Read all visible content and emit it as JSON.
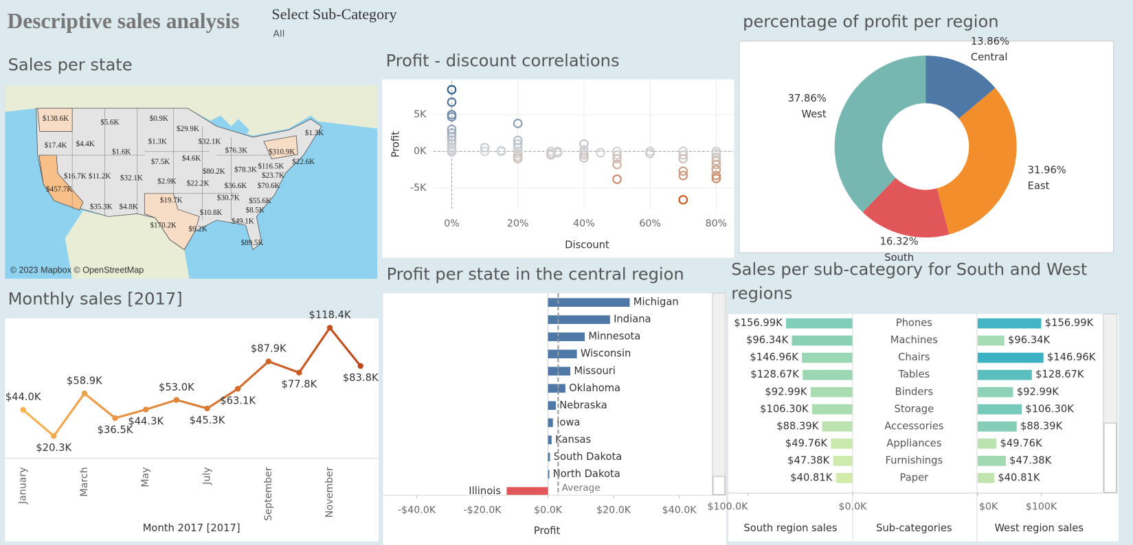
{
  "header": {
    "title": "Descriptive sales analysis",
    "filter_label": "Select Sub-Category",
    "filter_value": "All"
  },
  "map": {
    "title": "Sales per state",
    "labels": [
      "$138.6K",
      "$5.6K",
      "$0.9K",
      "$29.9K",
      "$1.3K",
      "$17.4K",
      "$4.4K",
      "$1.3K",
      "$32.1K",
      "$76.3K",
      "$310.9K",
      "$1.6K",
      "$7.5K",
      "$4.6K",
      "$22.6K",
      "$116.5K",
      "$80.2K",
      "$78.3K",
      "$23.7K",
      "$16.7K",
      "$11.2K",
      "$32.1K",
      "$2.9K",
      "$22.2K",
      "$36.6K",
      "$70.6K",
      "$457.7K",
      "$19.7K",
      "$30.7K",
      "$55.6K",
      "$35.3K",
      "$4.8K",
      "$10.8K",
      "$8.5K",
      "$49.1K",
      "$170.2K",
      "$9.2K",
      "$89.5K"
    ],
    "attribution": "© 2023 Mapbox © OpenStreetMap"
  },
  "chart_data": [
    {
      "type": "scatter",
      "title": "Profit - discount correlations",
      "x_label": "Discount",
      "y_label": "Profit",
      "xlim": [
        -5.5,
        85.2
      ],
      "ylim": [
        -7900,
        9600
      ],
      "xticks": [
        {
          "value": 0,
          "label": "0%"
        },
        {
          "value": 20,
          "label": "20%"
        },
        {
          "value": 40,
          "label": "40%"
        },
        {
          "value": 60,
          "label": "60%"
        },
        {
          "value": 80,
          "label": "80%"
        }
      ],
      "yticks": [
        {
          "value": 5000,
          "label": "5K"
        },
        {
          "value": 0,
          "label": "0K"
        },
        {
          "value": -5000,
          "label": "-5K"
        }
      ],
      "grid": true,
      "x": [
        0,
        0,
        0,
        0,
        0,
        0,
        0,
        0,
        0,
        0,
        0,
        0,
        0,
        10,
        10,
        15,
        15,
        20,
        20,
        20,
        20,
        20,
        20,
        20,
        20,
        30,
        30,
        30,
        32,
        32,
        40,
        40,
        40,
        40,
        40,
        45,
        50,
        50,
        50,
        50,
        50,
        60,
        60,
        70,
        70,
        70,
        70,
        70,
        70,
        80,
        80,
        80,
        80,
        80,
        80,
        80,
        80
      ],
      "y": [
        8400,
        6700,
        5000,
        4700,
        3000,
        2500,
        2000,
        1500,
        1000,
        500,
        200,
        0,
        -100,
        500,
        0,
        100,
        0,
        3800,
        1500,
        1000,
        500,
        0,
        -300,
        -700,
        -1000,
        0,
        -300,
        -500,
        0,
        -200,
        1000,
        200,
        -200,
        -500,
        -900,
        -200,
        0,
        -500,
        -1000,
        -1800,
        -3800,
        0,
        -300,
        0,
        -500,
        -1000,
        -2700,
        -3300,
        -6600,
        0,
        -300,
        -800,
        -1300,
        -1800,
        -2500,
        -3300,
        -3700
      ],
      "color_scale": {
        "negative": "#cc5414",
        "zero": "#cfd2d6",
        "positive": "#2a5b8a"
      }
    },
    {
      "type": "pie",
      "title": "percentage of profit per region",
      "donut": true,
      "categories": [
        "Central",
        "East",
        "South",
        "West"
      ],
      "values": [
        13.86,
        31.96,
        16.32,
        37.86
      ],
      "value_labels": [
        "13.86%",
        "31.96%",
        "16.32%",
        "37.86%"
      ],
      "colors": [
        "#4e79a7",
        "#f28e2b",
        "#e15759",
        "#76b7b2"
      ]
    },
    {
      "type": "line",
      "title": "Monthly sales [2017]",
      "x_label": "Month 2017 [2017]",
      "categories": [
        "January",
        null,
        "March",
        null,
        "May",
        null,
        "July",
        null,
        "September",
        null,
        "November",
        null
      ],
      "values": [
        44000,
        20300,
        58900,
        36500,
        44300,
        53000,
        45300,
        63100,
        87900,
        77800,
        118400,
        83800
      ],
      "value_labels": [
        "$44.0K",
        "$20.3K",
        "$58.9K",
        "$36.5K",
        "$44.3K",
        "$53.0K",
        "$45.3K",
        "$63.1K",
        "$87.9K",
        "$77.8K",
        "$118.4K",
        "$83.8K"
      ],
      "ylim": [
        0,
        127000
      ],
      "color_range": [
        "#f8b552",
        "#c0461a"
      ]
    },
    {
      "type": "bar",
      "orientation": "horizontal",
      "title": "Profit per state in the central region",
      "x_label": "Profit",
      "categories": [
        "Michigan",
        "Indiana",
        "Minnesota",
        "Wisconsin",
        "Missouri",
        "Oklahoma",
        "Nebraska",
        "Iowa",
        "Kansas",
        "South Dakota",
        "North Dakota",
        "Illinois"
      ],
      "values": [
        24900,
        18900,
        11200,
        8800,
        6800,
        5300,
        2400,
        1500,
        1100,
        600,
        400,
        -12600
      ],
      "xlim": [
        -50300,
        49900
      ],
      "xticks": [
        {
          "value": -40000,
          "label": "-$40.0K"
        },
        {
          "value": -20000,
          "label": "-$20.0K"
        },
        {
          "value": 0,
          "label": "$0.0K"
        },
        {
          "value": 20000,
          "label": "$20.0K"
        },
        {
          "value": 40000,
          "label": "$40.0K"
        }
      ],
      "reference_line": {
        "label": "Average",
        "value": 3100
      },
      "colors": {
        "positive": "#4e79a7",
        "negative": "#e15759"
      }
    },
    {
      "type": "diverging-bar",
      "title": "Sales per sub-category for South and West regions",
      "center_label": "Sub-categories",
      "categories": [
        "Phones",
        "Machines",
        "Chairs",
        "Tables",
        "Binders",
        "Storage",
        "Accessories",
        "Appliances",
        "Furnishings",
        "Paper"
      ],
      "total_labels": [
        "$156.99K",
        "$96.34K",
        "$146.96K",
        "$128.67K",
        "$92.99K",
        "$106.30K",
        "$88.39K",
        "$49.76K",
        "$47.38K",
        "$40.81K"
      ],
      "series": [
        {
          "name": "South region sales",
          "values": [
            63400,
            57900,
            48300,
            47600,
            40000,
            38600,
            29000,
            20700,
            18600,
            15900
          ],
          "xlim": [
            0,
            117000
          ],
          "xticks": [
            {
              "value": 100000,
              "label": "$100.0K"
            },
            {
              "value": 0,
              "label": "$0.0K"
            }
          ]
        },
        {
          "name": "West region sales",
          "values": [
            100000,
            42000,
            103400,
            85200,
            55700,
            69300,
            61400,
            29500,
            44300,
            26100
          ],
          "xlim": [
            0,
            193000
          ],
          "xticks": [
            {
              "value": 0,
              "label": "$0K"
            },
            {
              "value": 100000,
              "label": "$100K"
            }
          ]
        }
      ],
      "color_range": [
        "#eef6a6",
        "#3bb3c5"
      ]
    }
  ]
}
